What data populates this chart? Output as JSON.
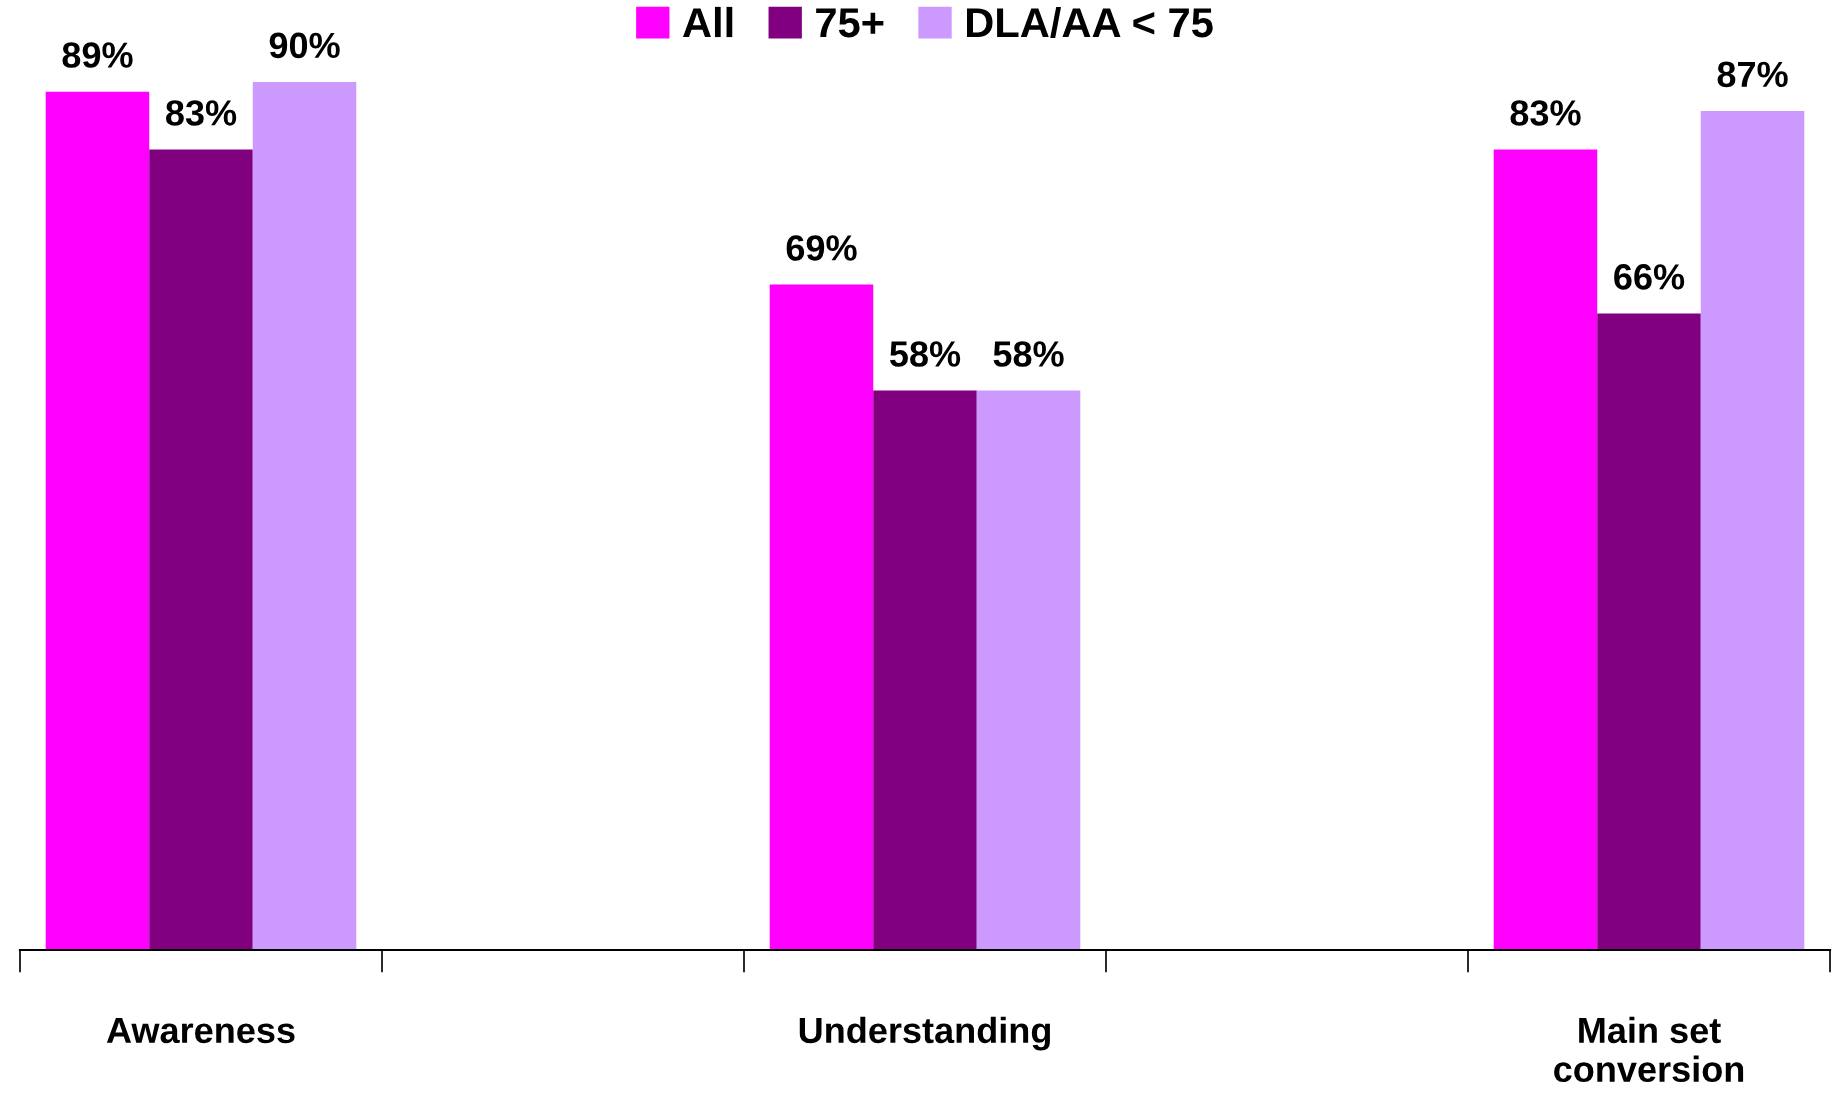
{
  "chart_data": {
    "type": "bar",
    "categories": [
      "Awareness",
      null,
      "Understanding",
      null,
      "Main set\nconversion"
    ],
    "series": [
      {
        "name": "All",
        "color": "#ff00ff",
        "values": [
          89,
          null,
          69,
          null,
          83
        ],
        "value_labels": [
          "89%",
          null,
          "69%",
          null,
          "83%"
        ]
      },
      {
        "name": "75+",
        "color": "#800080",
        "values": [
          83,
          null,
          58,
          null,
          66
        ],
        "value_labels": [
          "83%",
          null,
          "58%",
          null,
          "66%"
        ]
      },
      {
        "name": "DLA/AA < 75",
        "color": "#cc99ff",
        "values": [
          90,
          null,
          58,
          null,
          87
        ],
        "value_labels": [
          "90%",
          null,
          "58%",
          null,
          "87%"
        ]
      }
    ],
    "legend": "top",
    "grid": false
  }
}
